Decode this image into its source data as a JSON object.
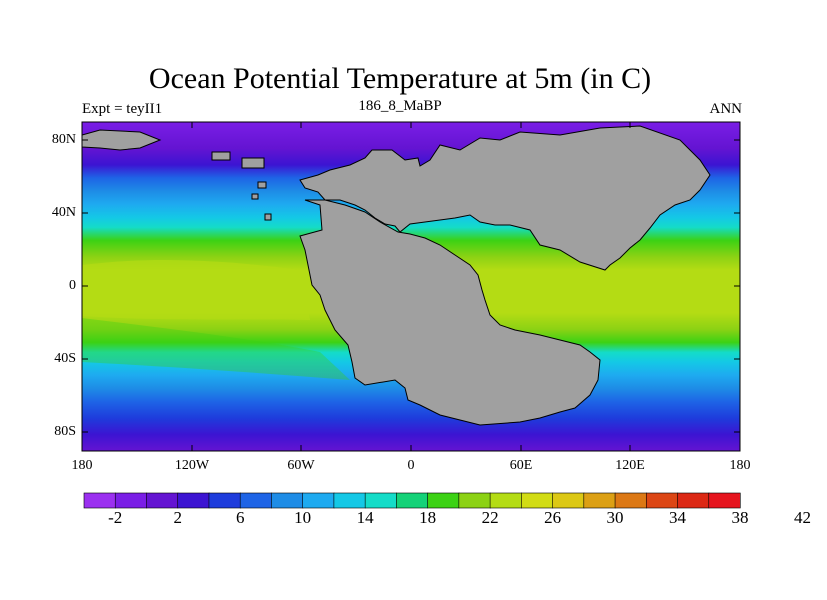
{
  "title": "Ocean Potential Temperature at 5m (in C)",
  "subtitle_left": "Expt = teyII1",
  "subtitle_center": "186_8_MaBP",
  "subtitle_right": "ANN",
  "lat_ticks": [
    "80N",
    "40N",
    "0",
    "40S",
    "80S"
  ],
  "lon_ticks": [
    "180",
    "120W",
    "60W",
    "0",
    "60E",
    "120E",
    "180"
  ],
  "colorbar": {
    "labels": [
      "-2",
      "2",
      "6",
      "10",
      "14",
      "18",
      "22",
      "26",
      "30",
      "34",
      "38",
      "42"
    ],
    "colors": [
      "#9b30f0",
      "#7a1ee6",
      "#6414d2",
      "#3c14d2",
      "#1e3cdc",
      "#1e64e6",
      "#1e8ce6",
      "#1eaaf0",
      "#14c8e6",
      "#14dcc8",
      "#14d278",
      "#3cd214",
      "#8cd214",
      "#b4dc14",
      "#d2dc14",
      "#dcc814",
      "#dca014",
      "#dc7814",
      "#dc4614",
      "#dc2814",
      "#e6141e"
    ]
  },
  "colors": {
    "land": "#a0a0a0",
    "coast": "#000000"
  }
}
